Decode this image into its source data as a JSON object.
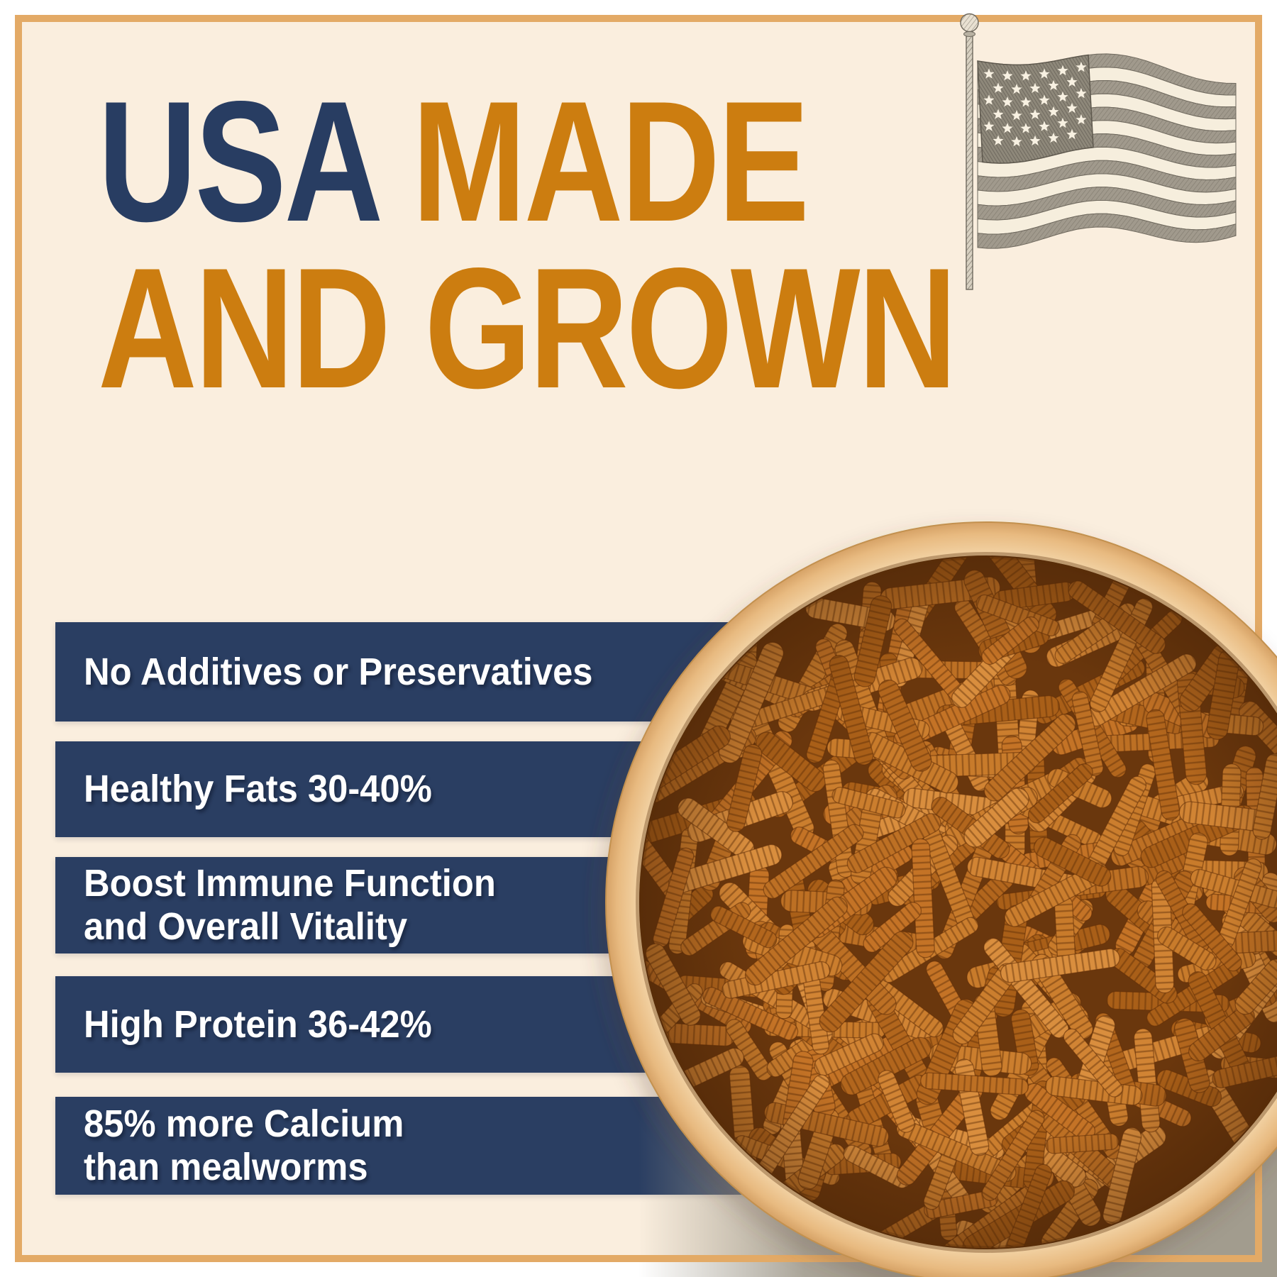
{
  "page": {
    "kind": "product-infographic"
  },
  "title": {
    "word1": "USA",
    "word2": "MADE",
    "line2": "AND GROWN"
  },
  "benefits": [
    {
      "lines": [
        "No Additives or Preservatives"
      ]
    },
    {
      "lines": [
        "Healthy Fats 30-40%"
      ]
    },
    {
      "lines": [
        "Boost Immune Function",
        "and Overall Vitality"
      ]
    },
    {
      "lines": [
        "High Protein 36-42%"
      ]
    },
    {
      "lines": [
        "85% more Calcium",
        "than mealworms"
      ]
    }
  ],
  "icons": {
    "flag": "us-flag-sketch-icon",
    "bowl": "bowl-of-dried-larvae-photo"
  },
  "colors": {
    "navy": "#2a3e62",
    "orange": "#cc7d10",
    "cream": "#faeede",
    "frame_gold": "#e3aa66",
    "photo_gray": "#a29c8e",
    "banner_text": "#ffffff"
  }
}
